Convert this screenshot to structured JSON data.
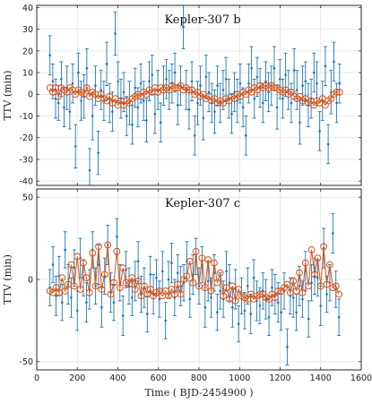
{
  "colors": {
    "observed": "#1f77b4",
    "model": "#d95319"
  },
  "chart_data": [
    {
      "type": "scatter",
      "title": "Kepler-307 b",
      "ylabel": "TTV (min)",
      "xlabel": "",
      "xlim": [
        0,
        1600
      ],
      "ylim": [
        -42,
        41
      ],
      "xticks": [
        0,
        200,
        400,
        600,
        800,
        1000,
        1200,
        1400,
        1600
      ],
      "yticks": [
        -40,
        -30,
        -20,
        -10,
        0,
        10,
        20,
        30,
        40
      ],
      "grid": true,
      "observed": {
        "x": [
          65,
          79,
          93,
          107,
          121,
          135,
          149,
          163,
          177,
          191,
          205,
          219,
          233,
          247,
          261,
          275,
          289,
          303,
          317,
          331,
          345,
          359,
          373,
          387,
          401,
          415,
          429,
          443,
          457,
          471,
          485,
          499,
          513,
          527,
          541,
          555,
          569,
          583,
          597,
          611,
          625,
          639,
          653,
          667,
          681,
          695,
          709,
          723,
          737,
          751,
          765,
          779,
          793,
          807,
          821,
          835,
          849,
          863,
          877,
          891,
          905,
          919,
          933,
          947,
          961,
          975,
          989,
          1003,
          1017,
          1031,
          1045,
          1059,
          1073,
          1087,
          1101,
          1115,
          1129,
          1143,
          1157,
          1171,
          1185,
          1199,
          1213,
          1227,
          1241,
          1255,
          1269,
          1283,
          1297,
          1311,
          1325,
          1339,
          1353,
          1367,
          1381,
          1395,
          1409,
          1423,
          1437,
          1451,
          1465,
          1479,
          1493
        ],
        "y": [
          18,
          6,
          -2,
          -4,
          7,
          -6,
          3,
          -8,
          5,
          -24,
          10,
          -3,
          -1,
          12,
          -35,
          -10,
          4,
          -27,
          2,
          -3,
          14,
          -4,
          -8,
          28,
          6,
          -2,
          1,
          -10,
          -4,
          -14,
          3,
          -6,
          5,
          -3,
          -12,
          6,
          9,
          -9,
          2,
          -13,
          4,
          7,
          2,
          5,
          10,
          -5,
          4,
          31,
          2,
          -7,
          6,
          -19,
          -4,
          4,
          -11,
          8,
          1,
          -4,
          -8,
          4,
          -4,
          2,
          7,
          -2,
          -9,
          1,
          -3,
          5,
          -6,
          -19,
          5,
          12,
          -2,
          8,
          3,
          -4,
          6,
          1,
          4,
          12,
          -6,
          7,
          -2,
          9,
          2,
          -4,
          11,
          2,
          -13,
          4,
          6,
          -5,
          -2,
          10,
          5,
          -17,
          -3,
          13,
          -23,
          1,
          15,
          -4,
          5
        ],
        "err": [
          9,
          8,
          9,
          8,
          8,
          9,
          10,
          8,
          9,
          10,
          9,
          9,
          10,
          9,
          10,
          11,
          9,
          10,
          9,
          9,
          10,
          9,
          9,
          10,
          9,
          9,
          9,
          9,
          10,
          9,
          9,
          9,
          9,
          9,
          10,
          9,
          9,
          9,
          9,
          9,
          9,
          9,
          9,
          9,
          9,
          9,
          9,
          10,
          9,
          9,
          9,
          9,
          10,
          9,
          10,
          10,
          9,
          9,
          10,
          9,
          9,
          9,
          10,
          9,
          9,
          9,
          10,
          9,
          9,
          9,
          9,
          10,
          9,
          9,
          9,
          9,
          9,
          9,
          9,
          10,
          10,
          9,
          9,
          10,
          9,
          9,
          10,
          9,
          10,
          9,
          9,
          10,
          9,
          9,
          10,
          9,
          9,
          9,
          9,
          10,
          9,
          9,
          9
        ]
      },
      "model": {
        "x": [
          65,
          79,
          93,
          107,
          121,
          135,
          149,
          163,
          177,
          191,
          205,
          219,
          233,
          247,
          261,
          275,
          289,
          303,
          317,
          331,
          345,
          359,
          373,
          387,
          401,
          415,
          429,
          443,
          457,
          471,
          485,
          499,
          513,
          527,
          541,
          555,
          569,
          583,
          597,
          611,
          625,
          639,
          653,
          667,
          681,
          695,
          709,
          723,
          737,
          751,
          765,
          779,
          793,
          807,
          821,
          835,
          849,
          863,
          877,
          891,
          905,
          919,
          933,
          947,
          961,
          975,
          989,
          1003,
          1017,
          1031,
          1045,
          1059,
          1073,
          1087,
          1101,
          1115,
          1129,
          1143,
          1157,
          1171,
          1185,
          1199,
          1213,
          1227,
          1241,
          1255,
          1269,
          1283,
          1297,
          1311,
          1325,
          1339,
          1353,
          1367,
          1381,
          1395,
          1409,
          1423,
          1437,
          1451,
          1465,
          1479,
          1493
        ],
        "y": [
          3,
          1,
          3,
          -1,
          3,
          2,
          1,
          3,
          2,
          0,
          2,
          1,
          0,
          3,
          -1,
          1,
          0,
          -2,
          0,
          -2,
          -3,
          -1,
          -4,
          -2,
          -5,
          -3,
          -5,
          -3,
          -4,
          -2,
          -1,
          0,
          -1,
          1,
          0,
          2,
          1,
          3,
          1,
          3,
          2,
          3,
          2,
          4,
          3,
          3,
          4,
          2,
          3,
          2,
          2,
          0,
          1,
          -1,
          0,
          -2,
          -1,
          -3,
          -2,
          -4,
          -3,
          -4,
          -2,
          -3,
          -1,
          -2,
          0,
          -1,
          1,
          0,
          2,
          1,
          3,
          2,
          4,
          3,
          4,
          3,
          4,
          3,
          3,
          2,
          1,
          2,
          0,
          1,
          -1,
          -2,
          -1,
          -3,
          -2,
          -4,
          -3,
          -5,
          -3,
          -4,
          -2,
          -5,
          -3,
          -2,
          0,
          1,
          1
        ]
      }
    },
    {
      "type": "scatter",
      "title": "Kepler-307 c",
      "ylabel": "TTV (min)",
      "xlabel": "Time ( BJD-2454900 )",
      "xlim": [
        0,
        1600
      ],
      "ylim": [
        -55,
        55
      ],
      "xticks": [
        0,
        200,
        400,
        600,
        800,
        1000,
        1200,
        1400,
        1600
      ],
      "yticks": [
        -50,
        0,
        50
      ],
      "grid": true,
      "observed": {
        "x": [
          65,
          80,
          95,
          110,
          125,
          140,
          155,
          170,
          185,
          200,
          215,
          230,
          245,
          260,
          275,
          290,
          305,
          320,
          335,
          350,
          365,
          380,
          395,
          410,
          425,
          440,
          455,
          470,
          485,
          500,
          515,
          530,
          545,
          560,
          575,
          590,
          605,
          620,
          635,
          650,
          665,
          680,
          695,
          710,
          725,
          740,
          755,
          770,
          785,
          800,
          815,
          830,
          845,
          860,
          875,
          890,
          905,
          920,
          935,
          950,
          965,
          980,
          995,
          1010,
          1025,
          1040,
          1055,
          1070,
          1085,
          1100,
          1115,
          1130,
          1145,
          1160,
          1175,
          1190,
          1205,
          1220,
          1235,
          1250,
          1265,
          1280,
          1295,
          1310,
          1325,
          1340,
          1355,
          1370,
          1385,
          1400,
          1415,
          1430,
          1445,
          1460,
          1475,
          1490
        ],
        "y": [
          -5,
          9,
          -10,
          2,
          -14,
          18,
          -3,
          -11,
          7,
          -19,
          13,
          1,
          -14,
          -6,
          18,
          -4,
          9,
          -17,
          2,
          21,
          -8,
          -14,
          26,
          -2,
          -22,
          6,
          -4,
          -11,
          -1,
          11,
          -9,
          -5,
          -21,
          3,
          -9,
          1,
          -12,
          5,
          -25,
          0,
          10,
          -11,
          4,
          -4,
          -2,
          11,
          -12,
          3,
          14,
          -4,
          9,
          -17,
          -1,
          -11,
          4,
          -20,
          -7,
          -12,
          5,
          -2,
          -17,
          -6,
          -27,
          -10,
          -19,
          -4,
          -21,
          1,
          -13,
          -16,
          -7,
          -12,
          -23,
          -5,
          -9,
          -14,
          -20,
          -7,
          -41,
          -10,
          -11,
          -20,
          -4,
          -12,
          5,
          -24,
          -2,
          2,
          1,
          -16,
          19,
          -9,
          -2,
          28,
          -6,
          -23
        ],
        "err": [
          11,
          11,
          12,
          12,
          11,
          11,
          12,
          12,
          11,
          12,
          12,
          11,
          12,
          12,
          11,
          11,
          12,
          12,
          11,
          12,
          12,
          11,
          11,
          11,
          12,
          11,
          11,
          11,
          12,
          12,
          11,
          12,
          11,
          11,
          12,
          11,
          11,
          12,
          11,
          11,
          12,
          11,
          11,
          12,
          11,
          12,
          11,
          12,
          11,
          11,
          11,
          12,
          12,
          12,
          11,
          11,
          11,
          11,
          12,
          11,
          12,
          12,
          11,
          11,
          11,
          11,
          12,
          11,
          12,
          11,
          11,
          12,
          11,
          11,
          12,
          12,
          11,
          11,
          11,
          11,
          12,
          11,
          12,
          11,
          12,
          11,
          11,
          11,
          11,
          12,
          12,
          11,
          11,
          12,
          11,
          11
        ]
      },
      "model": {
        "x": [
          65,
          80,
          95,
          110,
          125,
          140,
          155,
          170,
          185,
          200,
          215,
          230,
          245,
          260,
          275,
          290,
          305,
          320,
          335,
          350,
          365,
          380,
          395,
          410,
          425,
          440,
          455,
          470,
          485,
          500,
          515,
          530,
          545,
          560,
          575,
          590,
          605,
          620,
          635,
          650,
          665,
          680,
          695,
          710,
          725,
          740,
          755,
          770,
          785,
          800,
          815,
          830,
          845,
          860,
          875,
          890,
          905,
          920,
          935,
          950,
          965,
          980,
          995,
          1010,
          1025,
          1040,
          1055,
          1070,
          1085,
          1100,
          1115,
          1130,
          1145,
          1160,
          1175,
          1190,
          1205,
          1220,
          1235,
          1250,
          1265,
          1280,
          1295,
          1310,
          1325,
          1340,
          1355,
          1370,
          1385,
          1400,
          1415,
          1430,
          1445,
          1460,
          1475,
          1490
        ],
        "y": [
          -7,
          -8,
          -5,
          -8,
          1,
          -7,
          -3,
          9,
          -4,
          14,
          -6,
          10,
          1,
          -8,
          16,
          -4,
          20,
          -6,
          3,
          21,
          -9,
          -2,
          17,
          -5,
          7,
          -2,
          -3,
          1,
          -6,
          -1,
          -10,
          -4,
          -9,
          -6,
          -10,
          -8,
          -7,
          -10,
          -7,
          -10,
          -6,
          -9,
          -3,
          -9,
          0,
          2,
          11,
          -2,
          17,
          -4,
          13,
          -5,
          12,
          -7,
          10,
          -2,
          4,
          -10,
          -5,
          -12,
          -4,
          -13,
          -6,
          -10,
          -11,
          -12,
          -9,
          -12,
          -10,
          -9,
          -9,
          -11,
          -12,
          -9,
          -11,
          -7,
          -7,
          -5,
          -3,
          -8,
          -1,
          -7,
          4,
          -8,
          10,
          -4,
          18,
          3,
          13,
          -4,
          20,
          -3,
          9,
          -5,
          -4,
          -9
        ]
      }
    }
  ]
}
